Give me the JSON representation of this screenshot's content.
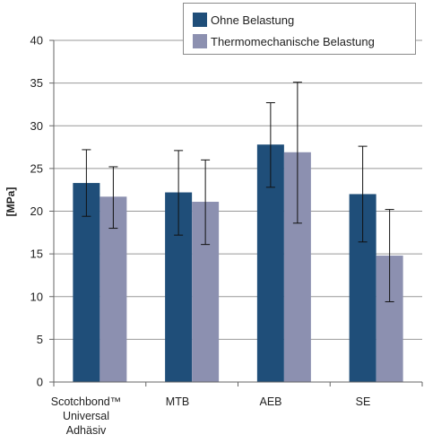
{
  "chart_data": {
    "type": "bar",
    "title": "",
    "xlabel": "",
    "ylabel": "[MPa]",
    "ylim": [
      0,
      40
    ],
    "yticks": [
      0,
      5,
      10,
      15,
      20,
      25,
      30,
      35,
      40
    ],
    "grid": true,
    "legend_position": "top-right",
    "categories": [
      "Scotchbond™\nUniversal\nAdhäsiv",
      "MTB",
      "AEB",
      "SE"
    ],
    "series": [
      {
        "name": "Ohne Belastung",
        "color": "#1f4e79",
        "values": [
          23.3,
          22.2,
          27.8,
          22.0
        ],
        "error_low": [
          19.4,
          17.2,
          22.8,
          16.4
        ],
        "error_high": [
          27.2,
          27.1,
          32.7,
          27.6
        ]
      },
      {
        "name": "Thermomechanische Belastung",
        "color": "#8c90b0",
        "values": [
          21.7,
          21.1,
          26.9,
          14.8
        ],
        "error_low": [
          18.0,
          16.1,
          18.6,
          9.4
        ],
        "error_high": [
          25.2,
          26.0,
          35.1,
          20.2
        ]
      }
    ]
  }
}
